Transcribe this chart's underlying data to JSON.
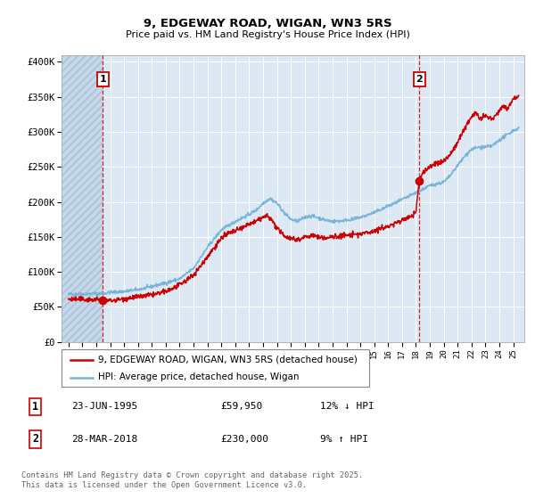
{
  "title1": "9, EDGEWAY ROAD, WIGAN, WN3 5RS",
  "title2": "Price paid vs. HM Land Registry's House Price Index (HPI)",
  "bg_color": "#dce9f5",
  "hatch_color": "#b8cfe0",
  "red_color": "#cc0000",
  "blue_color": "#7ab4d8",
  "marker1_date": 1995.48,
  "marker1_price": 59950,
  "marker2_date": 2018.24,
  "marker2_price": 230000,
  "vline1_date": 1995.48,
  "vline2_date": 2018.24,
  "ylim": [
    0,
    410000
  ],
  "xlim_left": 1992.5,
  "xlim_right": 2025.8,
  "legend_label_red": "9, EDGEWAY ROAD, WIGAN, WN3 5RS (detached house)",
  "legend_label_blue": "HPI: Average price, detached house, Wigan",
  "ann1_label": "1",
  "ann2_label": "2",
  "ann1_x": 1995.48,
  "ann2_x": 2018.24,
  "table_row1": [
    "1",
    "23-JUN-1995",
    "£59,950",
    "12% ↓ HPI"
  ],
  "table_row2": [
    "2",
    "28-MAR-2018",
    "£230,000",
    "9% ↑ HPI"
  ],
  "footer": "Contains HM Land Registry data © Crown copyright and database right 2025.\nThis data is licensed under the Open Government Licence v3.0.",
  "yticks": [
    0,
    50000,
    100000,
    150000,
    200000,
    250000,
    300000,
    350000,
    400000
  ],
  "ytick_labels": [
    "£0",
    "£50K",
    "£100K",
    "£150K",
    "£200K",
    "£250K",
    "£300K",
    "£350K",
    "£400K"
  ],
  "xtick_start": 1993,
  "xtick_end": 2025
}
